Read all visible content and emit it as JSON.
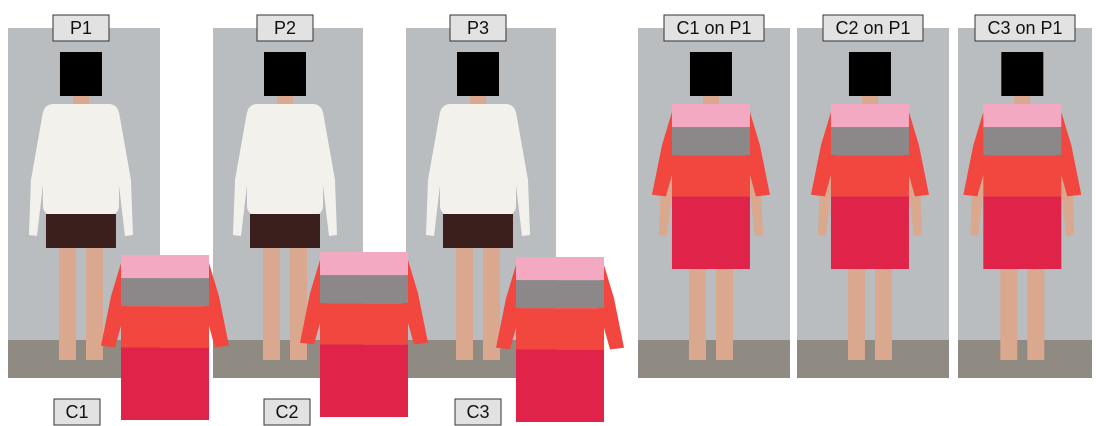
{
  "labels": {
    "persons": [
      "P1",
      "P2",
      "P3"
    ],
    "garments": [
      "C1",
      "C2",
      "C3"
    ],
    "results": [
      "C1 on P1",
      "C2 on P1",
      "C3 on P1"
    ]
  }
}
